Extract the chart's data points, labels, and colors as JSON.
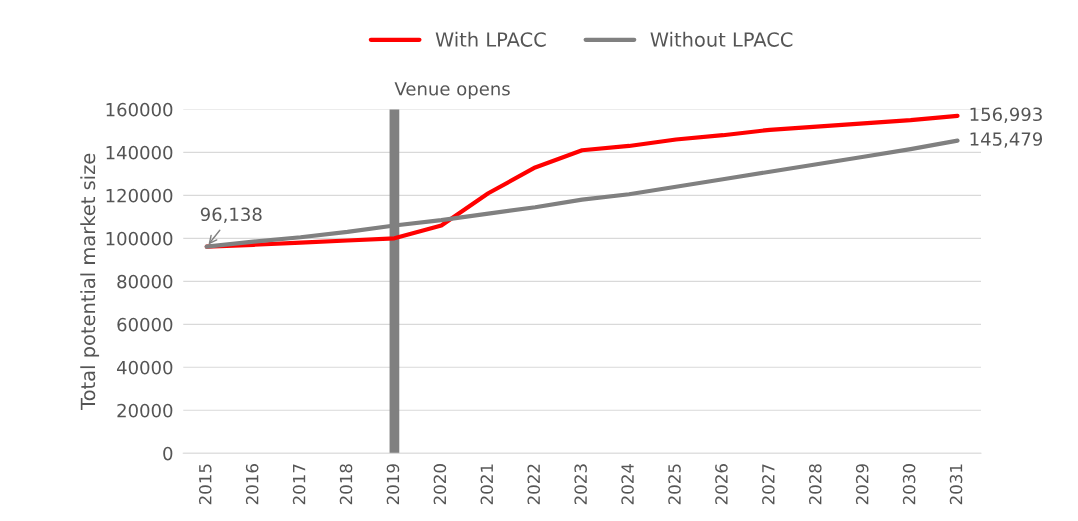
{
  "chart_data": {
    "type": "line",
    "ylabel": "Total potential market size",
    "categories": [
      "2015",
      "2016",
      "2017",
      "2018",
      "2019",
      "2020",
      "2021",
      "2022",
      "2023",
      "2024",
      "2025",
      "2026",
      "2027",
      "2028",
      "2029",
      "2030",
      "2031"
    ],
    "series": [
      {
        "name": "With LPACC",
        "color": "#ff0000",
        "values": [
          96138,
          97000,
          98000,
          99000,
          100000,
          106000,
          121000,
          133000,
          141000,
          143000,
          146000,
          148000,
          150500,
          152000,
          153500,
          155000,
          156993
        ]
      },
      {
        "name": "Without LPACC",
        "color": "#808080",
        "values": [
          96138,
          98500,
          100500,
          103000,
          106000,
          108500,
          111500,
          114500,
          118000,
          120500,
          124000,
          127500,
          131000,
          134500,
          138000,
          141500,
          145479
        ]
      }
    ],
    "ylim": [
      0,
      160000
    ],
    "yticks": [
      0,
      20000,
      40000,
      60000,
      80000,
      100000,
      120000,
      140000,
      160000
    ],
    "grid": "y",
    "legend": "top",
    "marker": "none",
    "line_style": "solid",
    "ref_lines": [
      {
        "axis": "x",
        "value": "2019",
        "label": "Venue opens",
        "color": "#808080"
      }
    ],
    "annotations": [
      {
        "text": "96,138",
        "x": "2015",
        "y": 96138
      },
      {
        "text": "156,993",
        "x": "2031",
        "y": 156993
      },
      {
        "text": "145,479",
        "x": "2031",
        "y": 145479
      }
    ]
  }
}
